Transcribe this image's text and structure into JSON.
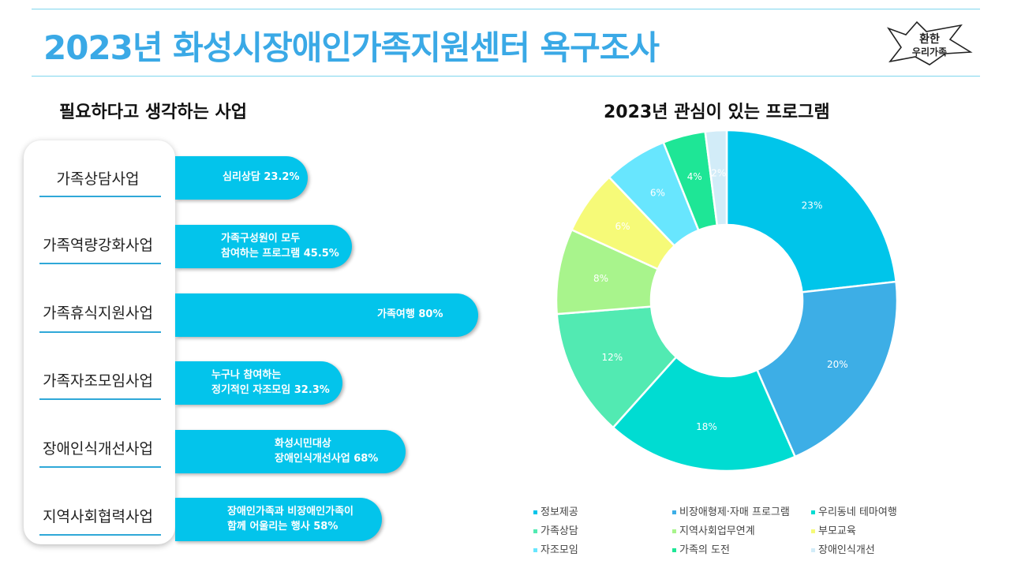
{
  "header": {
    "title": "2023년 화성시장애인가족지원센터 욕구조사",
    "logo_text": [
      "환한",
      "우리가족"
    ]
  },
  "left_section": {
    "title": "필요하다고 생각하는 사업",
    "rows": [
      {
        "category": "가족상담사업",
        "lines": [
          "심리상담 23.2%"
        ],
        "value": 23.2
      },
      {
        "category": "가족역량강화사업",
        "lines": [
          "가족구성원이 모두",
          "참여하는 프로그램 45.5%"
        ],
        "value": 45.5
      },
      {
        "category": "가족휴식지원사업",
        "lines": [
          "가족여행 80%"
        ],
        "value": 80
      },
      {
        "category": "가족자조모임사업",
        "lines": [
          "누구나 참여하는",
          "정기적인 자조모임 32.3%"
        ],
        "value": 32.3
      },
      {
        "category": "장애인식개선사업",
        "lines": [
          "화성시민대상",
          "장애인식개선사업 68%"
        ],
        "value": 68
      },
      {
        "category": "지역사회협력사업",
        "lines": [
          "장애인가족과 비장애인가족이",
          "함께 어울리는 행사 58%"
        ],
        "value": 58
      }
    ]
  },
  "chart_data": {
    "type": "pie",
    "title": "2023년 관심이 있는 프로그램",
    "donut": true,
    "legend_position": "bottom",
    "categories": [
      "정보제공",
      "비장애형제·자매 프로그램",
      "우리동네 테마여행",
      "가족상담",
      "지역사회업무연계",
      "부모교육",
      "자조모임",
      "가족의 도전",
      "장애인식개선"
    ],
    "values": [
      23,
      20,
      18,
      12,
      8,
      6,
      6,
      4,
      2
    ],
    "labels": [
      "23%",
      "20%",
      "18%",
      "12%",
      "8%",
      "6%",
      "6%",
      "4%",
      "2%"
    ],
    "colors": [
      "#00c5ea",
      "#3daee6",
      "#00dcd2",
      "#52eab2",
      "#a8f48c",
      "#f6fa78",
      "#68e6fe",
      "#1ee696",
      "#d2ecf8"
    ]
  }
}
